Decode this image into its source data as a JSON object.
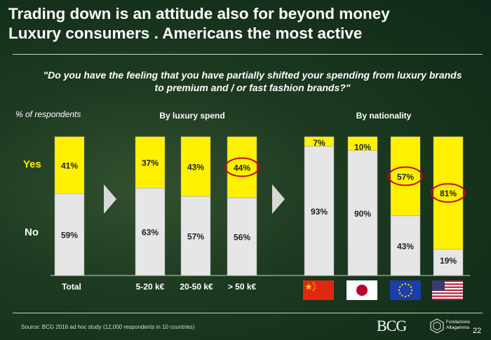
{
  "title": {
    "line1": "Trading down is an attitude also for beyond money",
    "line2": "Luxury consumers . Americans the most active"
  },
  "question": "\"Do you have the feeling that you have partially shifted your spending from luxury brands to premium and / or fast fashion brands?\"",
  "pct_label": "% of respondents",
  "row_labels": {
    "yes": "Yes",
    "no": "No"
  },
  "groups": {
    "spend": "By luxury spend",
    "nationality": "By nationality"
  },
  "colors": {
    "yes": "#fff100",
    "no": "#e6e6e6",
    "highlight": "#d0021b",
    "yes_label": "#fff100"
  },
  "chart_data": {
    "type": "bar",
    "stacked": true,
    "ylim": [
      0,
      100
    ],
    "categories": [
      "Total",
      "5-20 k€",
      "20-50 k€",
      "> 50 k€",
      "China",
      "Japan",
      "Europe",
      "USA"
    ],
    "series": [
      {
        "name": "No",
        "values": [
          59,
          63,
          57,
          56,
          93,
          90,
          43,
          19
        ],
        "labels": [
          "59%",
          "63%",
          "57%",
          "56%",
          "93%",
          "90%",
          "43%",
          "19%"
        ]
      },
      {
        "name": "Yes",
        "values": [
          41,
          37,
          43,
          44,
          7,
          10,
          57,
          81
        ],
        "labels": [
          "41%",
          "37%",
          "43%",
          "44%",
          "7%",
          "10%",
          "57%",
          "81%"
        ]
      }
    ],
    "highlighted": [
      "> 50 k€",
      "Europe",
      "USA"
    ],
    "x_labels": [
      "Total",
      "5-20 k€",
      "20-50 k€",
      "> 50 k€"
    ],
    "flags": [
      "china-flag",
      "japan-flag",
      "eu-flag",
      "usa-flag"
    ]
  },
  "source": "Source: BCG 2016 ad hoc study (12,000 respondents in 10 countries)",
  "logo": "BCG",
  "partner_logo": {
    "line1": "Fondazione",
    "line2": "Altagamma"
  },
  "page_number": "22"
}
